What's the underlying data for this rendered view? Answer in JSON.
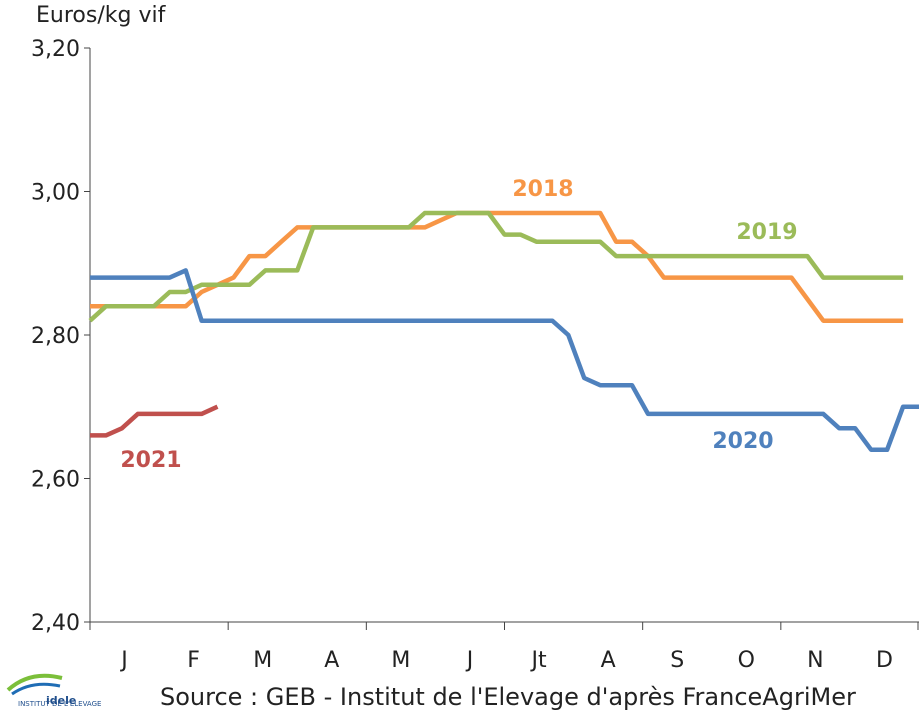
{
  "chart_data": {
    "type": "line",
    "y_axis_label": "Euros/kg vif",
    "source": "Source : GEB - Institut de l'Elevage d'après FranceAgriMer",
    "months": [
      "J",
      "F",
      "M",
      "A",
      "M",
      "J",
      "Jt",
      "A",
      "S",
      "O",
      "N",
      "D"
    ],
    "ylim": [
      2.4,
      3.2
    ],
    "yticks": [
      {
        "value": 2.4,
        "label": "2,40"
      },
      {
        "value": 2.6,
        "label": "2,60"
      },
      {
        "value": 2.8,
        "label": "2,80"
      },
      {
        "value": 3.0,
        "label": "3,00"
      },
      {
        "value": 3.2,
        "label": "3,20"
      }
    ],
    "series": [
      {
        "name": "2018",
        "color": "#f79646",
        "values": [
          2.84,
          2.84,
          2.84,
          2.84,
          2.84,
          2.84,
          2.84,
          2.86,
          2.87,
          2.88,
          2.91,
          2.91,
          2.93,
          2.95,
          2.95,
          2.95,
          2.95,
          2.95,
          2.95,
          2.95,
          2.95,
          2.95,
          2.96,
          2.97,
          2.97,
          2.97,
          2.97,
          2.97,
          2.97,
          2.97,
          2.97,
          2.97,
          2.97,
          2.93,
          2.93,
          2.91,
          2.88,
          2.88,
          2.88,
          2.88,
          2.88,
          2.88,
          2.88,
          2.88,
          2.88,
          2.85,
          2.82,
          2.82,
          2.82,
          2.82,
          2.82,
          2.82,
          null
        ]
      },
      {
        "name": "2019",
        "color": "#9bbb59",
        "values": [
          2.82,
          2.84,
          2.84,
          2.84,
          2.84,
          2.86,
          2.86,
          2.87,
          2.87,
          2.87,
          2.87,
          2.89,
          2.89,
          2.89,
          2.95,
          2.95,
          2.95,
          2.95,
          2.95,
          2.95,
          2.95,
          2.97,
          2.97,
          2.97,
          2.97,
          2.97,
          2.94,
          2.94,
          2.93,
          2.93,
          2.93,
          2.93,
          2.93,
          2.91,
          2.91,
          2.91,
          2.91,
          2.91,
          2.91,
          2.91,
          2.91,
          2.91,
          2.91,
          2.91,
          2.91,
          2.91,
          2.88,
          2.88,
          2.88,
          2.88,
          2.88,
          2.88,
          null
        ]
      },
      {
        "name": "2020",
        "color": "#4f81bd",
        "values": [
          2.88,
          2.88,
          2.88,
          2.88,
          2.88,
          2.88,
          2.89,
          2.82,
          2.82,
          2.82,
          2.82,
          2.82,
          2.82,
          2.82,
          2.82,
          2.82,
          2.82,
          2.82,
          2.82,
          2.82,
          2.82,
          2.82,
          2.82,
          2.82,
          2.82,
          2.82,
          2.82,
          2.82,
          2.82,
          2.82,
          2.8,
          2.74,
          2.73,
          2.73,
          2.73,
          2.69,
          2.69,
          2.69,
          2.69,
          2.69,
          2.69,
          2.69,
          2.69,
          2.69,
          2.69,
          2.69,
          2.69,
          2.67,
          2.67,
          2.64,
          2.64,
          2.7,
          2.7
        ]
      },
      {
        "name": "2021",
        "color": "#c0504d",
        "values": [
          2.66,
          2.66,
          2.67,
          2.69,
          2.69,
          2.69,
          2.69,
          2.69,
          2.7,
          null,
          null,
          null,
          null,
          null,
          null,
          null,
          null,
          null,
          null,
          null,
          null,
          null,
          null,
          null,
          null,
          null,
          null,
          null,
          null,
          null,
          null,
          null,
          null,
          null,
          null,
          null,
          null,
          null,
          null,
          null,
          null,
          null,
          null,
          null,
          null,
          null,
          null,
          null,
          null,
          null,
          null,
          null,
          null
        ]
      }
    ]
  }
}
